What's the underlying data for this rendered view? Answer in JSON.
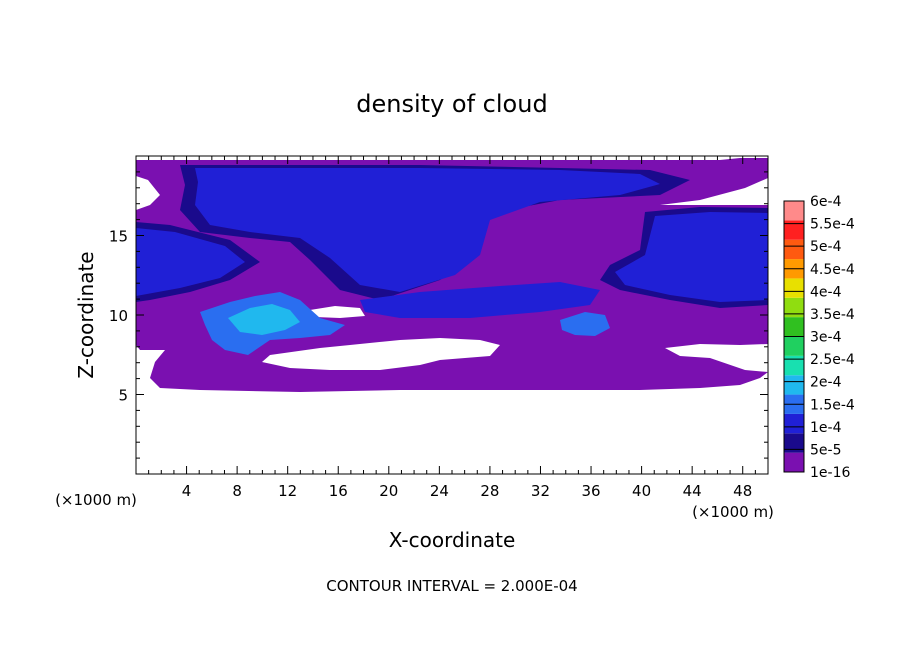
{
  "chart_data": {
    "type": "heatmap",
    "title": "density of cloud",
    "xlabel": "X-coordinate",
    "ylabel": "Z-coordinate",
    "x_unit_label": "(×1000 m)",
    "y_unit_label": "(×1000 m)",
    "footer": "CONTOUR INTERVAL = 2.000E-04",
    "xlim": [
      0,
      50
    ],
    "ylim": [
      0,
      20
    ],
    "x_ticks": [
      "4",
      "8",
      "12",
      "16",
      "20",
      "24",
      "28",
      "32",
      "36",
      "40",
      "44",
      "48"
    ],
    "y_ticks": [
      "5",
      "10",
      "15"
    ],
    "grid": false,
    "colorbar": {
      "position": "right",
      "levels": [
        "1e-16",
        "5e-5",
        "1e-4",
        "1.5e-4",
        "2e-4",
        "2.5e-4",
        "3e-4",
        "3.5e-4",
        "4e-4",
        "4.5e-4",
        "5e-4",
        "5.5e-4",
        "6e-4"
      ],
      "colors": [
        "#7a10b0",
        "#1a0a8c",
        "#2020d6",
        "#2a6ef0",
        "#20b8ee",
        "#18e0b0",
        "#20d060",
        "#30c020",
        "#90dd10",
        "#e8e000",
        "#ff9a00",
        "#ff5a10",
        "#ff2020",
        "#ff8a8a"
      ]
    },
    "regions": [
      {
        "value": "1e-16",
        "description": "bulk cloud field, z ≈ 5.5–19.5 km",
        "color": "#7a10b0"
      },
      {
        "value": "5e-5",
        "description": "upper anvil, x ≈ 0–50 km, z ≈ 10–19 km",
        "color": "#2020d6"
      },
      {
        "value": "1e-4",
        "description": "core, x ≈ 6–15 km, z ≈ 8.5–11.5 km",
        "color": "#2a6ef0"
      },
      {
        "value": "1.5e-4",
        "description": "peak pocket, x ≈ 8–13 km, z ≈ 9–11 km",
        "color": "#20b8ee"
      }
    ]
  }
}
